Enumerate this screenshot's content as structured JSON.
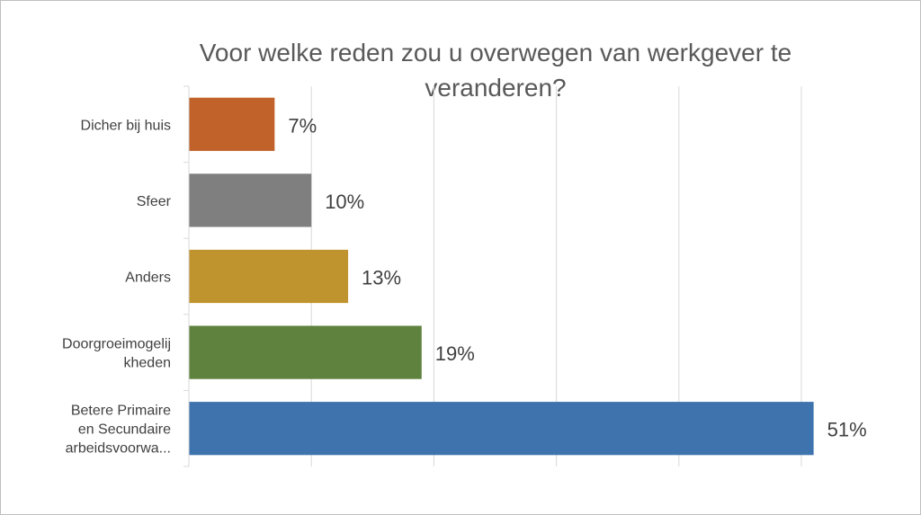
{
  "chart_data": {
    "type": "bar",
    "orientation": "horizontal",
    "title": "Voor welke reden zou u overwegen van werkgever te veranderen?",
    "xlabel": "",
    "ylabel": "",
    "categories": [
      "Dicher bij huis",
      "Sfeer",
      "Anders",
      "Doorgroeimogelijkheden",
      "Betere Primaire en Secundaire arbeidsvoorwa..."
    ],
    "category_label_lines": [
      [
        "Dicher bij huis"
      ],
      [
        "Sfeer"
      ],
      [
        "Anders"
      ],
      [
        "Doorgroeimogelij",
        "kheden"
      ],
      [
        "Betere Primaire",
        "en Secundaire",
        "arbeidsvoorwa..."
      ]
    ],
    "values": [
      7,
      10,
      13,
      19,
      51
    ],
    "data_labels": [
      "7%",
      "10%",
      "13%",
      "19%",
      "51%"
    ],
    "unit": "%",
    "colors": [
      "#c0622a",
      "#7f7f7f",
      "#bf942f",
      "#5f823f",
      "#3f73ae"
    ],
    "xlim": [
      0,
      50
    ],
    "grid": true,
    "legend": "none"
  }
}
